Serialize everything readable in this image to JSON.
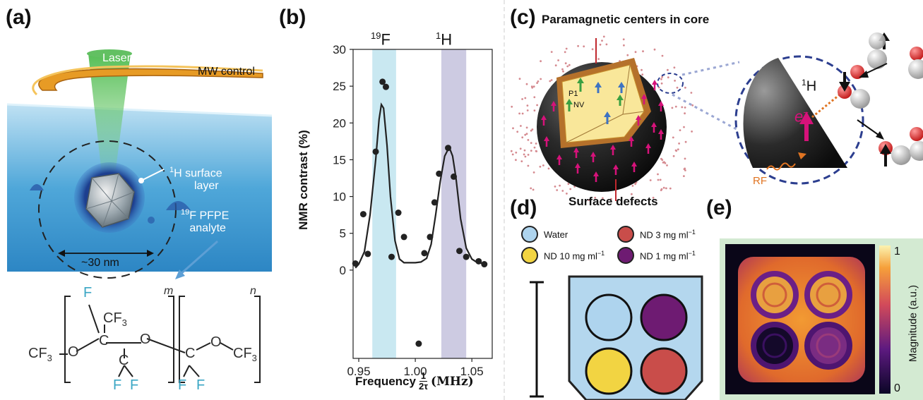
{
  "figure": {
    "panel_labels": {
      "a": "(a)",
      "b": "(b)",
      "c": "(c)",
      "d": "(d)",
      "e": "(e)"
    }
  },
  "panel_a": {
    "laser": "Laser",
    "mw_control": "MW control",
    "h_surface_sup": "1",
    "h_surface_line1": "H surface",
    "h_surface_line2": "layer",
    "f_pfpe_sup": "19",
    "f_pfpe_line1": "F PFPE",
    "f_pfpe_line2": "analyte",
    "scale": "~30 nm",
    "formula": {
      "cf3_left": "CF",
      "sub3": "3",
      "o": "O",
      "c": "C",
      "f": "F",
      "cf3_top": "CF",
      "cf3_right": "CF",
      "m": "m",
      "n": "n"
    }
  },
  "panel_b": {
    "top_label_f_sup": "19",
    "top_label_f": "F",
    "top_label_h_sup": "1",
    "top_label_h": "H",
    "ylabel": "NMR contrast (%)",
    "xlabel_prefix": "Frequency",
    "xlabel_frac_num": "1",
    "xlabel_frac_den": "2τ",
    "xlabel_unit": "(MHz)",
    "colors": {
      "f_band": "#c9e8f1",
      "h_band": "#cdcbe2",
      "fit": "#222222",
      "points": "#222222"
    }
  },
  "chart_data": {
    "type": "scatter",
    "title": "",
    "xlabel": "Frequency 1/2τ (MHz)",
    "ylabel": "NMR contrast (%)",
    "xlim": [
      0.945,
      1.068
    ],
    "ylim": [
      -12,
      30
    ],
    "xticks": [
      0.95,
      1.0,
      1.05
    ],
    "xtick_labels": [
      "0.95",
      "1.00",
      "1.05"
    ],
    "yticks": [
      0,
      5,
      10,
      15,
      20,
      25,
      30
    ],
    "ytick_labels": [
      "0",
      "5",
      "10",
      "15",
      "20",
      "25",
      "30"
    ],
    "shaded_bands": [
      {
        "label": "19F",
        "x": [
          0.962,
          0.983
        ]
      },
      {
        "label": "1H",
        "x": [
          1.023,
          1.045
        ]
      }
    ],
    "series": [
      {
        "type": "scatter",
        "x": [
          0.947,
          0.954,
          0.958,
          0.965,
          0.971,
          0.974,
          0.979,
          0.985,
          0.99,
          1.003,
          1.008,
          1.013,
          1.017,
          1.021,
          1.029,
          1.034,
          1.039,
          1.045,
          1.056,
          1.061
        ],
        "y": [
          0.9,
          7.6,
          2.2,
          16.1,
          25.6,
          24.9,
          1.8,
          7.8,
          4.5,
          -10.0,
          2.3,
          4.5,
          9.2,
          13.1,
          16.6,
          12.7,
          2.6,
          1.8,
          1.2,
          0.8
        ]
      },
      {
        "type": "line",
        "x": [
          0.947,
          0.95,
          0.955,
          0.96,
          0.965,
          0.968,
          0.97,
          0.972,
          0.975,
          0.978,
          0.982,
          0.986,
          0.99,
          0.995,
          1.0,
          1.005,
          1.01,
          1.014,
          1.018,
          1.022,
          1.026,
          1.03,
          1.033,
          1.036,
          1.04,
          1.045,
          1.05,
          1.055,
          1.062
        ],
        "y": [
          0.3,
          0.8,
          2.5,
          7.5,
          15.0,
          20.5,
          22.5,
          22.0,
          17.0,
          10.0,
          4.0,
          1.5,
          1.0,
          1.0,
          1.0,
          1.1,
          1.6,
          3.5,
          7.5,
          12.0,
          15.5,
          16.7,
          15.5,
          12.5,
          7.0,
          3.0,
          1.5,
          1.0,
          0.9
        ]
      }
    ]
  },
  "panel_c": {
    "title": "Paramagnetic centers in core",
    "surface_defects": "Surface defects",
    "p1": "P1",
    "nv": "NV",
    "h_sup": "1",
    "h": "H",
    "electron": "e",
    "electron_sup": "−",
    "rf": "RF",
    "colors": {
      "core": "#f9e79a",
      "shell": "#b5712b",
      "sphere": "#1a1a1a",
      "arrow": "#d6127a",
      "circle": "#2c3e8f"
    }
  },
  "panel_d": {
    "legend": [
      {
        "label": "Water",
        "color": "#aed4ee"
      },
      {
        "label": "ND 10 mg ml",
        "sup": "−1",
        "color": "#f2d442"
      },
      {
        "label": "ND 3 mg ml",
        "sup": "−1",
        "color": "#c94d4a"
      },
      {
        "label": "ND 1 mg ml",
        "sup": "−1",
        "color": "#6e1b72"
      }
    ],
    "container_color": "#b4d7ee"
  },
  "panel_e": {
    "colorbar_max": "1",
    "colorbar_min": "0",
    "colorbar_label": "Magnitude (a.u.)",
    "background": "#d3ead2"
  }
}
